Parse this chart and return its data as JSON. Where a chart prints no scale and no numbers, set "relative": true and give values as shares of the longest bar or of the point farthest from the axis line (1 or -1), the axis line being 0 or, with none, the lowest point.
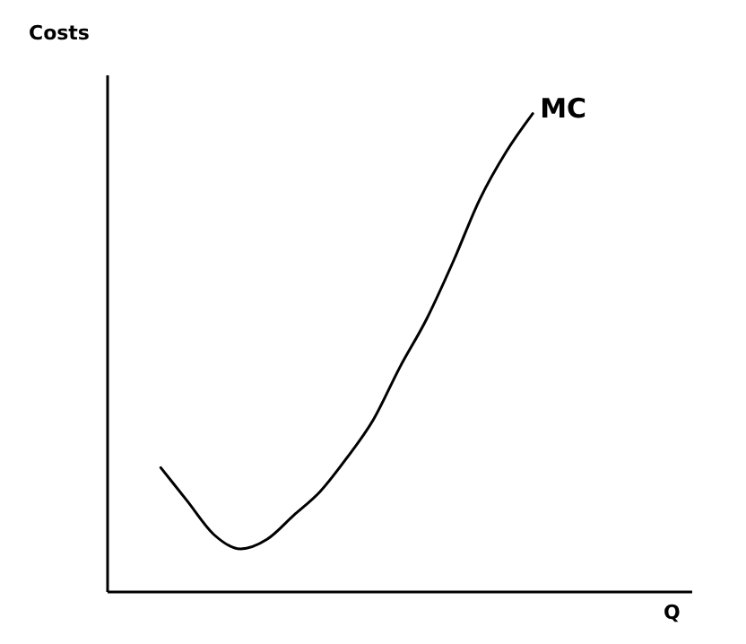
{
  "chart_data": {
    "type": "line",
    "relative": true,
    "xlabel": "Q",
    "ylabel": "Costs",
    "marker": "none",
    "line_style": "solid",
    "categories": [
      null,
      null,
      null,
      null,
      null,
      null,
      null,
      null,
      null,
      null,
      null,
      null,
      null,
      null,
      null,
      null,
      null,
      null,
      null,
      null,
      null,
      null,
      null
    ],
    "series": [
      {
        "name": "MC",
        "color": "#000000",
        "values": [
          null,
          null,
          0.26,
          0.19,
          0.12,
          0.09,
          0.11,
          0.16,
          0.21,
          0.28,
          0.36,
          0.47,
          0.57,
          0.69,
          0.82,
          0.92,
          1,
          null,
          null,
          null,
          null,
          null,
          null
        ]
      }
    ]
  }
}
